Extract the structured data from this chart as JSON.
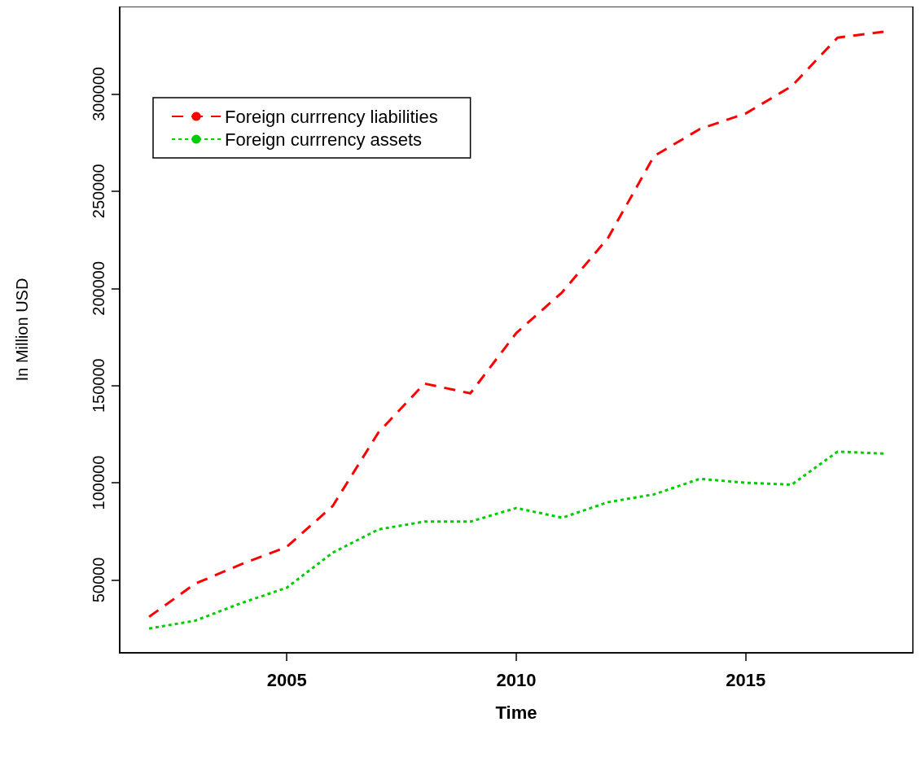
{
  "chart_data": {
    "type": "line",
    "xlabel": "Time",
    "ylabel": "In Million USD",
    "x": [
      2002,
      2003,
      2004,
      2005,
      2006,
      2007,
      2008,
      2009,
      2010,
      2011,
      2012,
      2013,
      2014,
      2015,
      2016,
      2017,
      2018
    ],
    "series": [
      {
        "name": "Foreign currrency liabilities",
        "color": "#ff0000",
        "line_style": "dashed",
        "values": [
          31000,
          48000,
          58000,
          67000,
          88000,
          126000,
          151000,
          146000,
          177000,
          198000,
          226000,
          268000,
          282000,
          290000,
          304000,
          329000,
          332000
        ]
      },
      {
        "name": "Foreign currrency assets",
        "color": "#00cd00",
        "line_style": "dotted",
        "values": [
          25000,
          29000,
          38000,
          46000,
          64000,
          76000,
          80000,
          80000,
          87000,
          82000,
          90000,
          94000,
          102000,
          100000,
          99000,
          116000,
          115000
        ]
      }
    ],
    "xlim": [
      2001.36,
      2018.64
    ],
    "xticks": [
      2005,
      2010,
      2015
    ],
    "ylim": [
      12500,
      345000
    ],
    "yticks": [
      50000,
      100000,
      150000,
      200000,
      250000,
      300000
    ],
    "grid": false,
    "legend": "top left",
    "marker": "none"
  }
}
